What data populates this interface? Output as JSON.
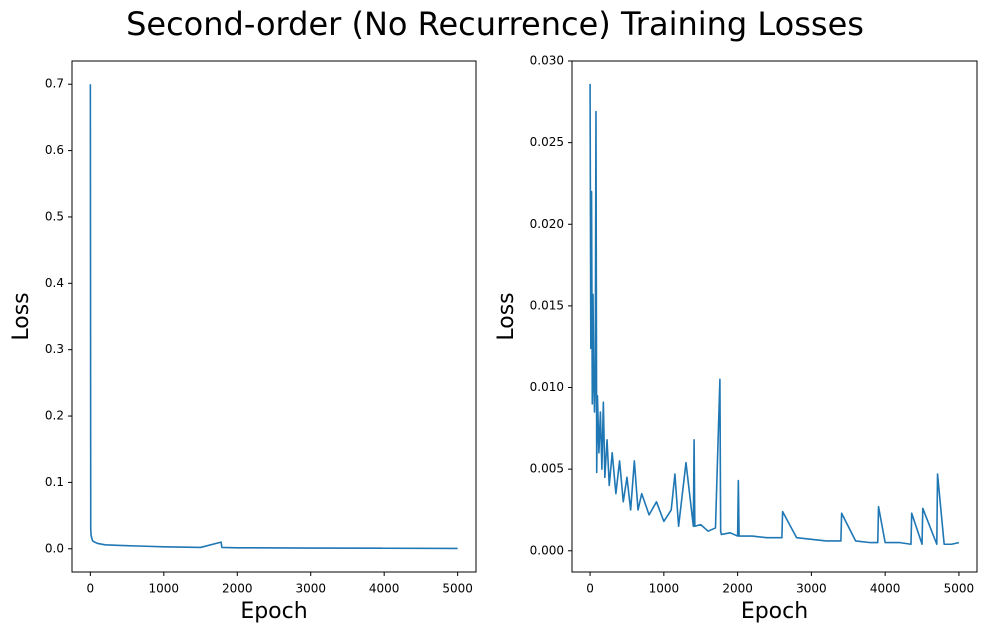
{
  "title": "Second-order (No Recurrence) Training Losses",
  "chart_data": [
    {
      "type": "line",
      "x_label": "Epoch",
      "y_label": "Loss",
      "xlim": [
        -250,
        5250
      ],
      "ylim": [
        -0.035,
        0.735
      ],
      "xticks": [
        0,
        1000,
        2000,
        3000,
        4000,
        5000
      ],
      "yticks": [
        {
          "value": 0,
          "label": "0.0"
        },
        0.1,
        0.2,
        0.3,
        0.4,
        0.5,
        0.6,
        0.7
      ],
      "series": [
        {
          "color": "#1f77b4",
          "x": [
            0,
            5,
            10,
            30,
            60,
            100,
            200,
            400,
            700,
            1000,
            1500,
            1780,
            1790,
            2000,
            3000,
            4000,
            5000
          ],
          "values": [
            0.7,
            0.03,
            0.02,
            0.012,
            0.01,
            0.008,
            0.006,
            0.005,
            0.004,
            0.003,
            0.002,
            0.01,
            0.002,
            0.0015,
            0.001,
            0.0008,
            0.0005
          ]
        }
      ]
    },
    {
      "type": "line",
      "x_label": "Epoch",
      "y_label": "Loss",
      "xlim": [
        -245,
        5245
      ],
      "ylim": [
        -0.0013,
        0.03
      ],
      "xticks": [
        0,
        1000,
        2000,
        3000,
        4000,
        5000
      ],
      "yticks": [
        {
          "value": 0,
          "label": "0.000"
        },
        {
          "value": 0.005,
          "label": "0.005"
        },
        {
          "value": 0.01,
          "label": "0.010"
        },
        {
          "value": 0.015,
          "label": "0.015"
        },
        {
          "value": 0.02,
          "label": "0.020"
        },
        {
          "value": 0.025,
          "label": "0.025"
        },
        {
          "value": 0.03,
          "label": "0.030"
        }
      ],
      "series": [
        {
          "color": "#1f77b4",
          "x": [
            0,
            10,
            20,
            30,
            40,
            50,
            60,
            70,
            80,
            90,
            100,
            120,
            140,
            160,
            180,
            200,
            230,
            260,
            300,
            350,
            400,
            450,
            500,
            550,
            600,
            650,
            700,
            800,
            900,
            1000,
            1100,
            1150,
            1200,
            1300,
            1400,
            1410,
            1420,
            1500,
            1600,
            1700,
            1760,
            1770,
            1780,
            1900,
            2000,
            2010,
            2020,
            2200,
            2400,
            2600,
            2610,
            2800,
            3000,
            3200,
            3400,
            3410,
            3600,
            3800,
            3900,
            3910,
            4000,
            4200,
            4350,
            4360,
            4500,
            4510,
            4700,
            4710,
            4800,
            4900,
            5000
          ],
          "values": [
            0.0286,
            0.0124,
            0.022,
            0.009,
            0.0157,
            0.0105,
            0.0085,
            0.0105,
            0.0269,
            0.0048,
            0.0095,
            0.006,
            0.0085,
            0.005,
            0.0091,
            0.0045,
            0.0068,
            0.004,
            0.006,
            0.0035,
            0.0055,
            0.003,
            0.0045,
            0.0025,
            0.0055,
            0.0025,
            0.0035,
            0.0022,
            0.003,
            0.0018,
            0.0025,
            0.0047,
            0.0015,
            0.0054,
            0.0015,
            0.0068,
            0.0015,
            0.0016,
            0.0012,
            0.0014,
            0.0105,
            0.0012,
            0.001,
            0.0011,
            0.0009,
            0.0043,
            0.0009,
            0.0009,
            0.0008,
            0.0008,
            0.0024,
            0.0008,
            0.0007,
            0.0006,
            0.0006,
            0.0023,
            0.0006,
            0.0005,
            0.0005,
            0.0027,
            0.0005,
            0.0005,
            0.0004,
            0.0023,
            0.0004,
            0.0026,
            0.0004,
            0.0047,
            0.0004,
            0.0004,
            0.0005
          ]
        }
      ]
    }
  ]
}
